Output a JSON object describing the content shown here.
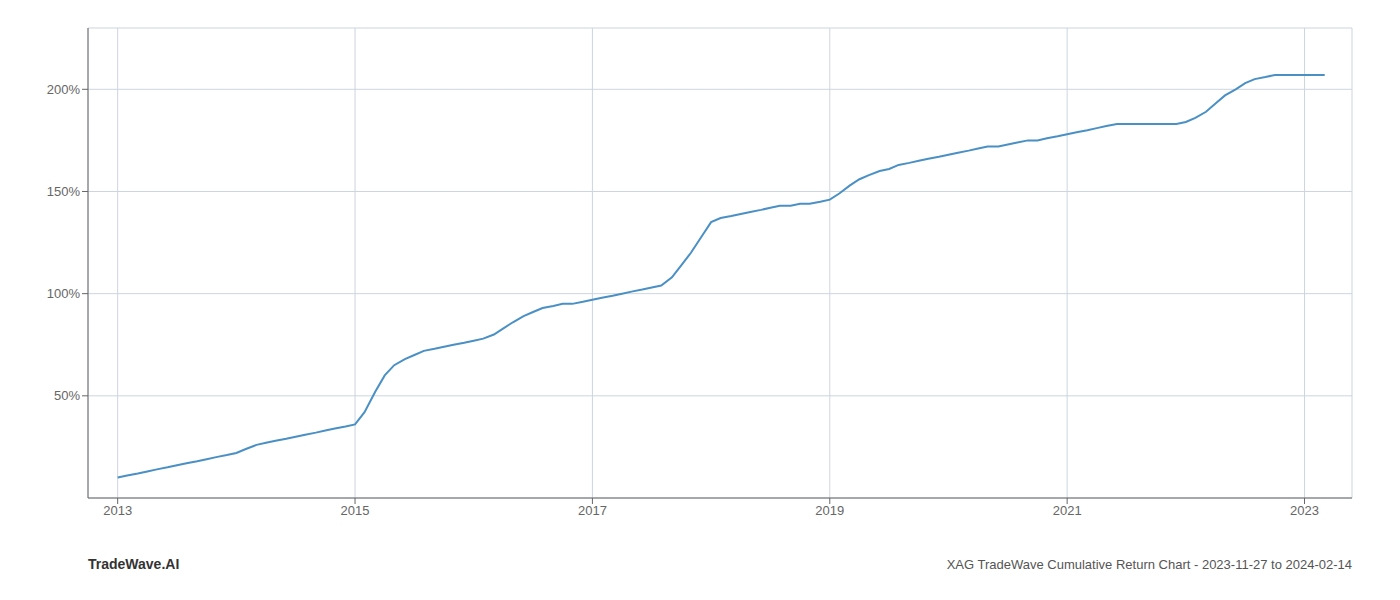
{
  "chart_data": {
    "type": "line",
    "title": "XAG TradeWave Cumulative Return Chart - 2023-11-27 to 2024-02-14",
    "annotations": [
      "TradeWave.AI"
    ],
    "color": "#4a90c4",
    "grid": true,
    "xlim": [
      2012.75,
      2023.4
    ],
    "xticks": [
      2013,
      2015,
      2017,
      2019,
      2021,
      2023
    ],
    "ylim": [
      0,
      230
    ],
    "yticks": [
      {
        "value": 50,
        "label": "50%"
      },
      {
        "value": 100,
        "label": "100%"
      },
      {
        "value": 150,
        "label": "150%"
      },
      {
        "value": 200,
        "label": "200%"
      }
    ],
    "x": [
      2013.0,
      2013.08,
      2013.17,
      2013.25,
      2013.33,
      2013.42,
      2013.5,
      2013.58,
      2013.67,
      2013.75,
      2013.83,
      2013.92,
      2014.0,
      2014.08,
      2014.17,
      2014.25,
      2014.33,
      2014.42,
      2014.5,
      2014.58,
      2014.67,
      2014.75,
      2014.83,
      2014.92,
      2015.0,
      2015.08,
      2015.17,
      2015.25,
      2015.33,
      2015.42,
      2015.5,
      2015.58,
      2015.67,
      2015.75,
      2015.83,
      2015.92,
      2016.0,
      2016.08,
      2016.17,
      2016.25,
      2016.33,
      2016.42,
      2016.5,
      2016.58,
      2016.67,
      2016.75,
      2016.83,
      2016.92,
      2017.0,
      2017.08,
      2017.17,
      2017.25,
      2017.33,
      2017.42,
      2017.5,
      2017.58,
      2017.67,
      2017.75,
      2017.83,
      2017.92,
      2018.0,
      2018.08,
      2018.17,
      2018.25,
      2018.33,
      2018.42,
      2018.5,
      2018.58,
      2018.67,
      2018.75,
      2018.83,
      2018.92,
      2019.0,
      2019.08,
      2019.17,
      2019.25,
      2019.33,
      2019.42,
      2019.5,
      2019.58,
      2019.67,
      2019.75,
      2019.83,
      2019.92,
      2020.0,
      2020.08,
      2020.17,
      2020.25,
      2020.33,
      2020.42,
      2020.5,
      2020.58,
      2020.67,
      2020.75,
      2020.83,
      2020.92,
      2021.0,
      2021.08,
      2021.17,
      2021.25,
      2021.33,
      2021.42,
      2021.5,
      2021.58,
      2021.67,
      2021.75,
      2021.83,
      2021.92,
      2022.0,
      2022.08,
      2022.17,
      2022.25,
      2022.33,
      2022.42,
      2022.5,
      2022.58,
      2022.67,
      2022.75,
      2022.83,
      2022.92,
      2023.0,
      2023.08,
      2023.17
    ],
    "values": [
      10,
      11,
      12,
      13,
      14,
      15,
      16,
      17,
      18,
      19,
      20,
      21,
      22,
      24,
      26,
      27,
      28,
      29,
      30,
      31,
      32,
      33,
      34,
      35,
      36,
      42,
      52,
      60,
      65,
      68,
      70,
      72,
      73,
      74,
      75,
      76,
      77,
      78,
      80,
      83,
      86,
      89,
      91,
      93,
      94,
      95,
      95,
      96,
      97,
      98,
      99,
      100,
      101,
      102,
      103,
      104,
      108,
      114,
      120,
      128,
      135,
      137,
      138,
      139,
      140,
      141,
      142,
      143,
      143,
      144,
      144,
      145,
      146,
      149,
      153,
      156,
      158,
      160,
      161,
      163,
      164,
      165,
      166,
      167,
      168,
      169,
      170,
      171,
      172,
      172,
      173,
      174,
      175,
      175,
      176,
      177,
      178,
      179,
      180,
      181,
      182,
      183,
      183,
      183,
      183,
      183,
      183,
      183,
      184,
      186,
      189,
      193,
      197,
      200,
      203,
      205,
      206,
      207,
      207,
      207,
      207,
      207,
      207
    ]
  }
}
